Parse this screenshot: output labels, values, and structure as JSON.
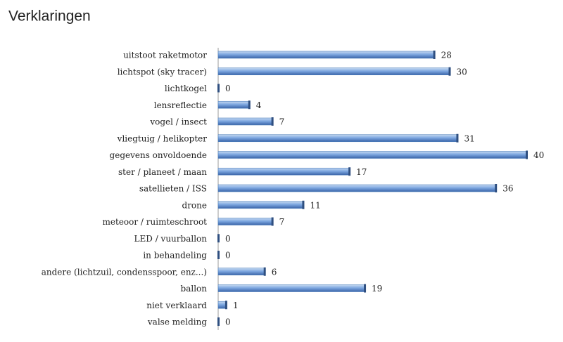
{
  "chart_data": {
    "type": "hbar",
    "title": "Verklaringen",
    "categories": [
      "uitstoot raketmotor",
      "lichtspot (sky tracer)",
      "lichtkogel",
      "lensreflectie",
      "vogel / insect",
      "vliegtuig / helikopter",
      "gegevens onvoldoende",
      "ster / planeet / maan",
      "satellieten / ISS",
      "drone",
      "meteoor / ruimteschroot",
      "LED / vuurballon",
      "in behandeling",
      "andere (lichtzuil, condensspoor, enz...)",
      "ballon",
      "niet verklaard",
      "valse melding"
    ],
    "values": [
      28,
      30,
      0,
      4,
      7,
      31,
      40,
      17,
      36,
      11,
      7,
      0,
      0,
      6,
      19,
      1,
      0
    ],
    "color": "#4f81bd"
  }
}
